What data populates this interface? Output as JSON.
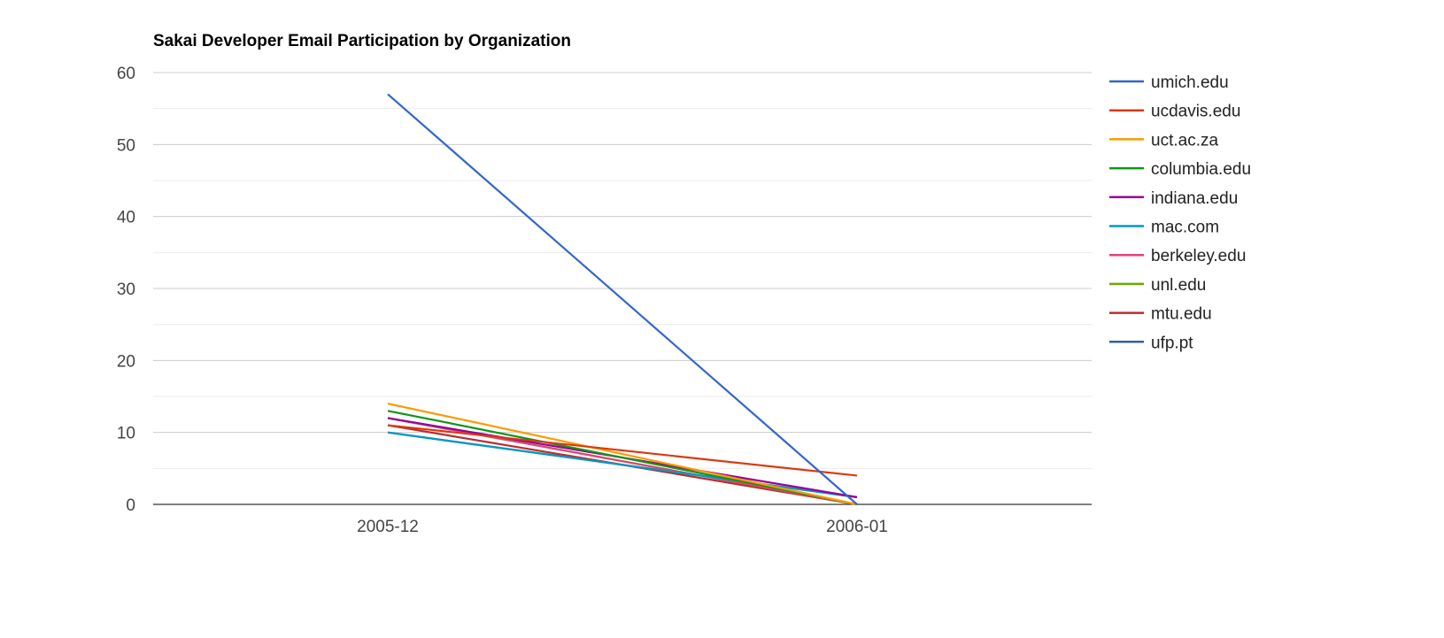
{
  "chart_data": {
    "type": "line",
    "title": "Sakai Developer Email Participation by Organization",
    "xlabel": "",
    "ylabel": "",
    "categories": [
      "2005-12",
      "2006-01"
    ],
    "ylim": [
      0,
      60
    ],
    "yticks": [
      0,
      10,
      20,
      30,
      40,
      50,
      60
    ],
    "grid": true,
    "legend_position": "right",
    "series": [
      {
        "name": "umich.edu",
        "color": "#3366cc",
        "values": [
          57,
          0
        ]
      },
      {
        "name": "ucdavis.edu",
        "color": "#dc3912",
        "values": [
          11,
          4
        ]
      },
      {
        "name": "uct.ac.za",
        "color": "#ff9900",
        "values": [
          14,
          0
        ]
      },
      {
        "name": "columbia.edu",
        "color": "#109618",
        "values": [
          13,
          0
        ]
      },
      {
        "name": "indiana.edu",
        "color": "#990099",
        "values": [
          12,
          1
        ]
      },
      {
        "name": "mac.com",
        "color": "#0099c6",
        "values": [
          10,
          1
        ]
      },
      {
        "name": "berkeley.edu",
        "color": "#dd4477",
        "values": [
          12,
          0
        ]
      },
      {
        "name": "unl.edu",
        "color": "#66aa00",
        "values": [
          12,
          0
        ]
      },
      {
        "name": "mtu.edu",
        "color": "#b82e2e",
        "values": [
          11,
          0
        ]
      },
      {
        "name": "ufp.pt",
        "color": "#316395",
        "values": [
          10,
          1
        ]
      }
    ]
  }
}
